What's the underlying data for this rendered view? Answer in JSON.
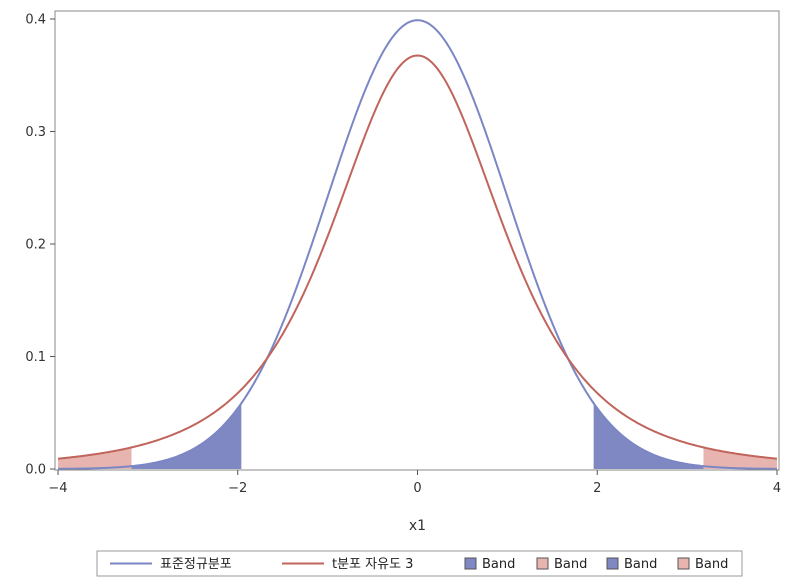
{
  "chart_data": {
    "type": "area",
    "title": "",
    "xlabel": "x1",
    "ylabel": "",
    "xlim": [
      -4,
      4
    ],
    "ylim": [
      0,
      0.4
    ],
    "x_ticks": [
      -4,
      -2,
      0,
      2,
      4
    ],
    "x_tick_labels": [
      "−4",
      "−2",
      "0",
      "2",
      "4"
    ],
    "y_ticks": [
      0,
      0.1,
      0.2,
      0.3,
      0.4
    ],
    "y_tick_labels": [
      "0.0",
      "0.1",
      "0.2",
      "0.3",
      "0.4"
    ],
    "grid": false,
    "legend_position": "bottom",
    "series": [
      {
        "name": "표준정규분포",
        "kind": "line",
        "distribution": "normal",
        "color": "#7b86c4"
      },
      {
        "name": "t분포 자유도 3",
        "kind": "line",
        "distribution": "t",
        "df": 3,
        "color": "#c0645c"
      }
    ],
    "bands": [
      {
        "name": "Band",
        "curve": "normal",
        "from": -4,
        "to": -1.96,
        "color": "#8088c4"
      },
      {
        "name": "Band",
        "curve": "t",
        "from": -4,
        "to": -3.182,
        "color": "#e8b4b0"
      },
      {
        "name": "Band",
        "curve": "normal",
        "from": 1.96,
        "to": 4,
        "color": "#8088c4"
      },
      {
        "name": "Band",
        "curve": "t",
        "from": 3.182,
        "to": 4,
        "color": "#e8b4b0"
      }
    ],
    "legend": [
      {
        "label": "표준정규분포",
        "kind": "line",
        "color": "#7b86c4"
      },
      {
        "label": "t분포 자유도 3",
        "kind": "line",
        "color": "#c0645c"
      },
      {
        "label": "Band",
        "kind": "swatch",
        "color": "#8088c4"
      },
      {
        "label": "Band",
        "kind": "swatch",
        "color": "#e8b4b0"
      },
      {
        "label": "Band",
        "kind": "swatch",
        "color": "#8088c4"
      },
      {
        "label": "Band",
        "kind": "swatch",
        "color": "#e8b4b0"
      }
    ]
  }
}
